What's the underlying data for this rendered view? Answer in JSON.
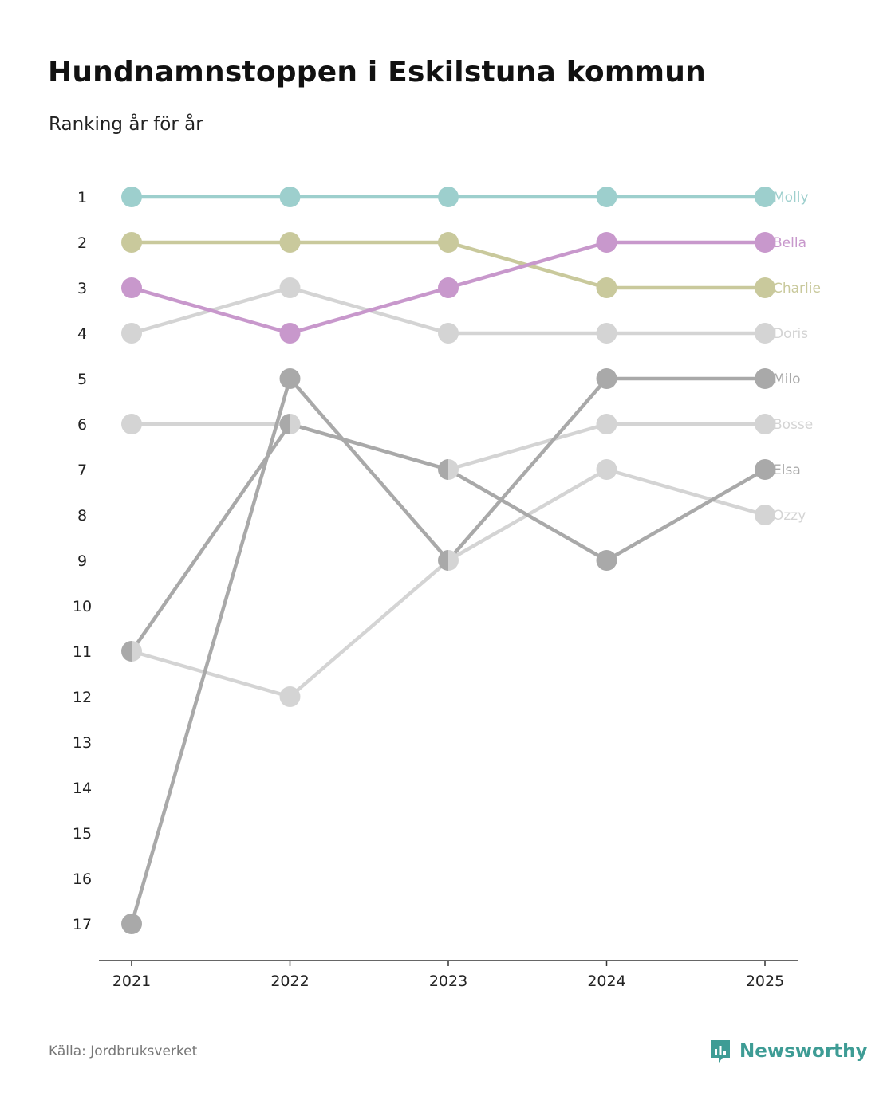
{
  "header": {
    "title": "Hundnamnstoppen i Eskilstuna kommun",
    "subtitle": "Ranking år för år"
  },
  "footer": {
    "source": "Källa: Jordbruksverket",
    "brand": "Newsworthy"
  },
  "colors": {
    "axis": "#333333",
    "brand": "#3e9c95"
  },
  "chart_data": {
    "type": "line",
    "title": "Hundnamnstoppen i Eskilstuna kommun",
    "subtitle": "Ranking år för år",
    "xlabel": "",
    "ylabel": "",
    "x": [
      "2021",
      "2022",
      "2023",
      "2024",
      "2025"
    ],
    "y_ticks": [
      "1",
      "2",
      "3",
      "4",
      "5",
      "6",
      "7",
      "8",
      "9",
      "10",
      "11",
      "12",
      "13",
      "14",
      "15",
      "16",
      "17"
    ],
    "ylim": [
      1,
      17
    ],
    "y_inverted": true,
    "grid": false,
    "legend": "direct labels at right end of lines",
    "series": [
      {
        "name": "Ozzy",
        "color": "#d4d4d4",
        "values": [
          11,
          12,
          9,
          7,
          8
        ]
      },
      {
        "name": "Bosse",
        "color": "#d4d4d4",
        "values": [
          6,
          6,
          7,
          6,
          6
        ]
      },
      {
        "name": "Doris",
        "color": "#d4d4d4",
        "values": [
          4,
          3,
          4,
          4,
          4
        ]
      },
      {
        "name": "Elsa",
        "color": "#a9a9a9",
        "values": [
          11,
          6,
          7,
          9,
          7
        ]
      },
      {
        "name": "Milo",
        "color": "#a9a9a9",
        "values": [
          17,
          5,
          9,
          5,
          5
        ]
      },
      {
        "name": "Charlie",
        "color": "#c9c99c",
        "values": [
          2,
          2,
          2,
          3,
          3
        ]
      },
      {
        "name": "Bella",
        "color": "#c898cc",
        "values": [
          3,
          4,
          3,
          2,
          2
        ]
      },
      {
        "name": "Molly",
        "color": "#9dcfcd",
        "values": [
          1,
          1,
          1,
          1,
          1
        ]
      }
    ]
  }
}
